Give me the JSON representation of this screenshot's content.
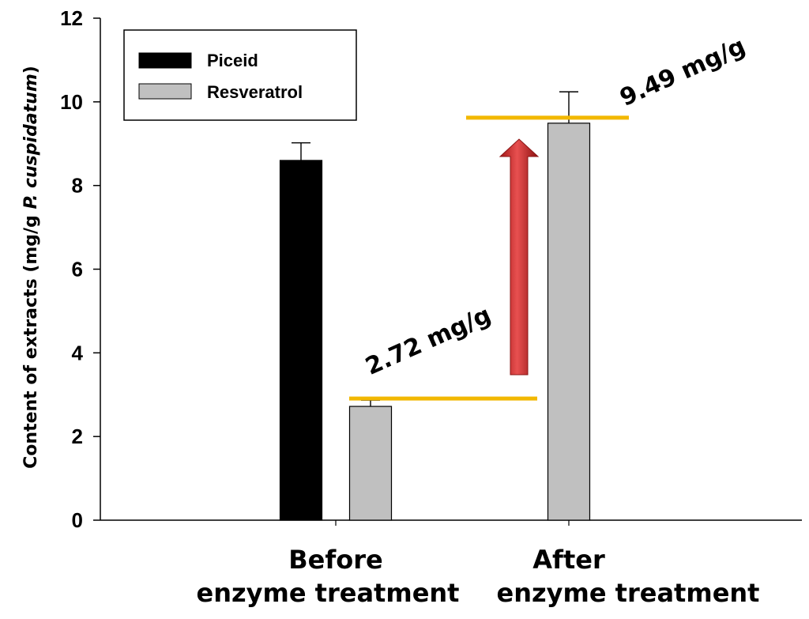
{
  "chart_data": {
    "type": "bar",
    "categories": [
      "Before\nenzyme treatment",
      "After\nenzyme treatment"
    ],
    "series": [
      {
        "name": "Piceid",
        "values": [
          8.6,
          null
        ],
        "errors": [
          0.42,
          null
        ],
        "color": "#000000"
      },
      {
        "name": "Resveratrol",
        "values": [
          2.72,
          9.49
        ],
        "errors": [
          0.15,
          0.75
        ],
        "color": "#c0c0c0"
      }
    ],
    "title": "",
    "xlabel": "",
    "ylabel": "Content of extracts (mg/g P. cuspidatum)",
    "ylabel_parts": {
      "plain": "Content of extracts (mg/g ",
      "italic": "P. cuspidatum",
      "close": ")"
    },
    "ylim": [
      0,
      12
    ],
    "yticks": [
      "0",
      "2",
      "4",
      "6",
      "8",
      "10",
      "12"
    ],
    "grid": false,
    "legend_position": "top-left",
    "annotations": [
      {
        "text": "2.72 mg/g",
        "value": 2.72,
        "line_color": "#f2b800"
      },
      {
        "text": "9.49 mg/g",
        "value": 9.49,
        "line_color": "#f2b800"
      }
    ],
    "arrow_color": "#c0282a"
  }
}
